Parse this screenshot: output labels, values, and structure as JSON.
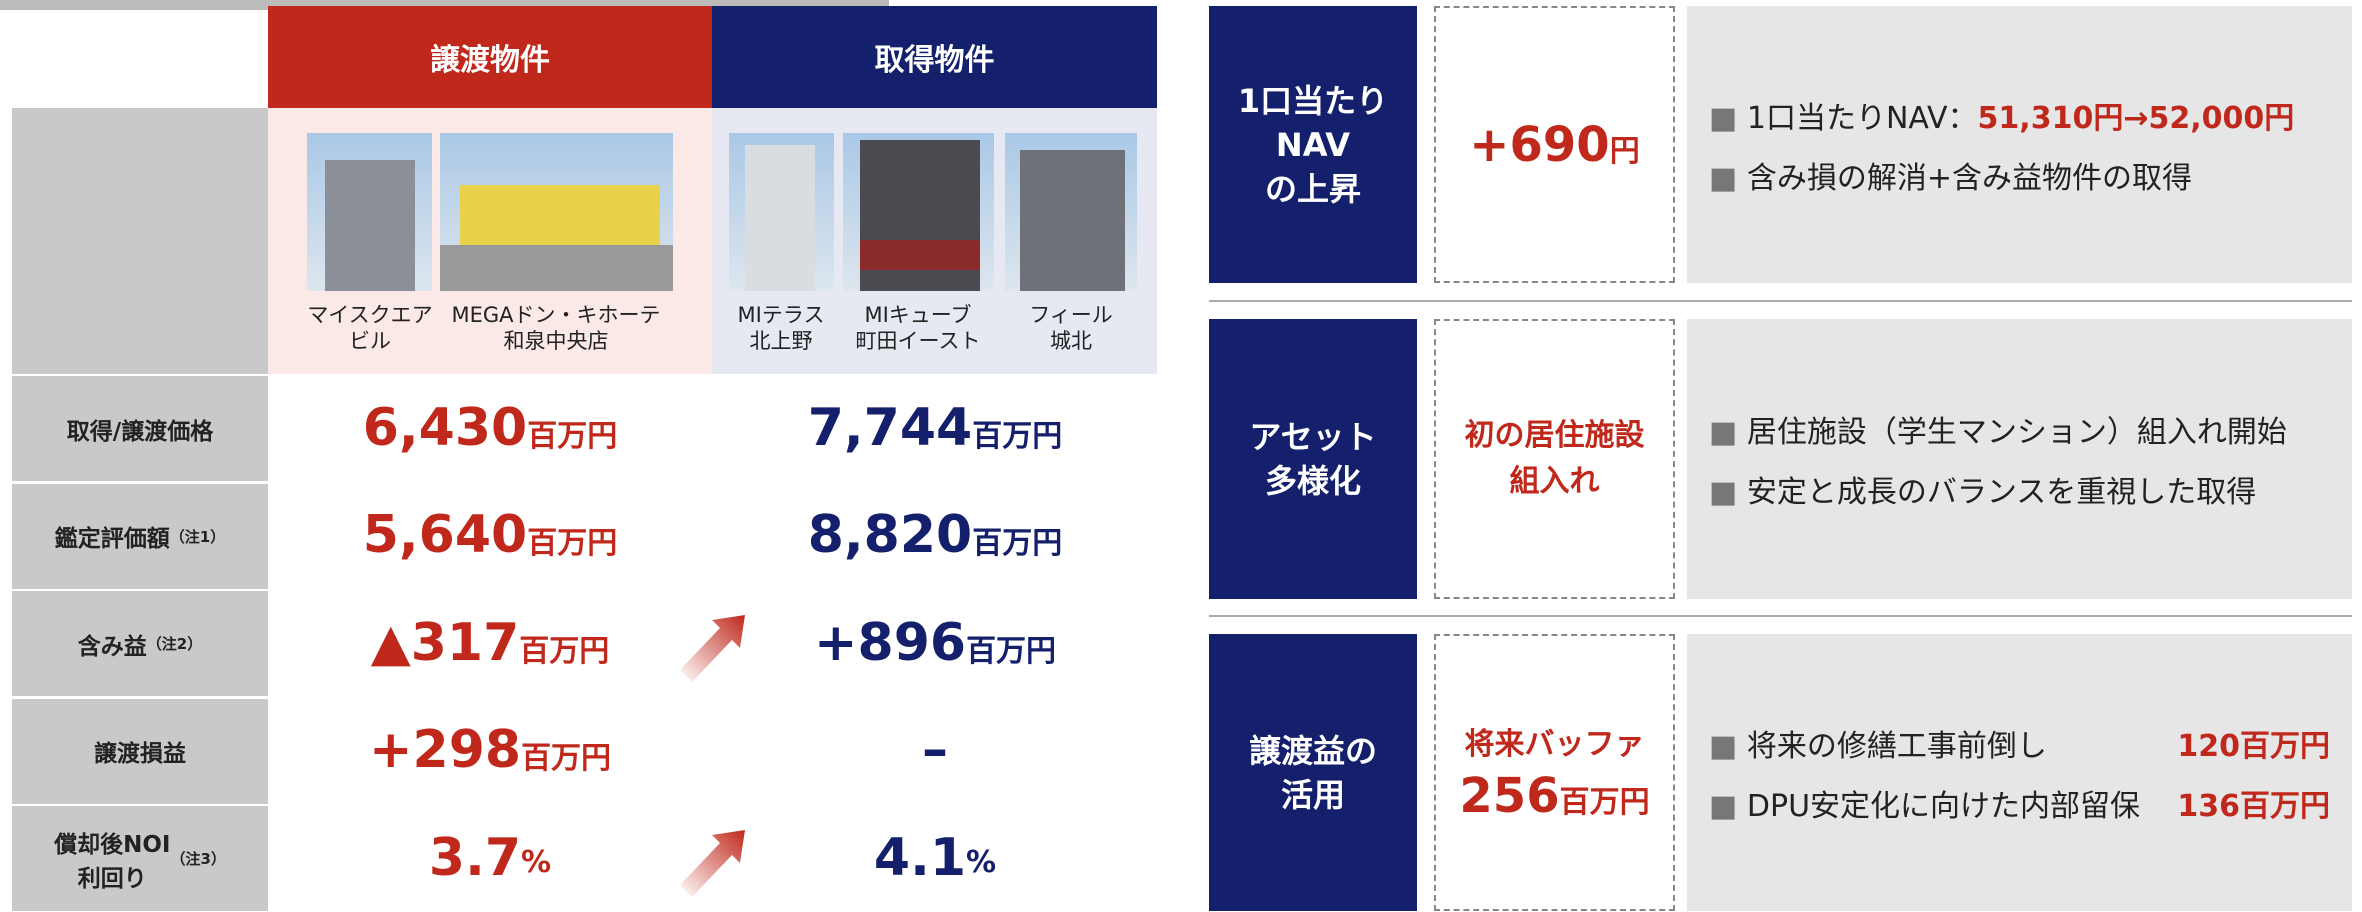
{
  "table": {
    "headers": [
      "譲渡物件",
      "取得物件"
    ],
    "properties": [
      "マイスクエア\nビル",
      "MEGAドン・キホーテ\n和泉中央店",
      "MIテラス\n北上野",
      "MIキューブ\n町田イースト",
      "フィール\n城北"
    ],
    "rows": [
      {
        "label": "取得/譲渡価格",
        "transfer": {
          "value": "6,430",
          "unit": "百万円"
        },
        "acquired": {
          "value": "7,744",
          "unit": "百万円"
        }
      },
      {
        "label": "鑑定評価額",
        "note": "（注1）",
        "transfer": {
          "value": "5,640",
          "unit": "百万円"
        },
        "acquired": {
          "value": "8,820",
          "unit": "百万円"
        }
      },
      {
        "label": "含み益",
        "note": "（注2）",
        "transfer": {
          "value": "▲317",
          "unit": "百万円"
        },
        "acquired": {
          "value": "+896",
          "unit": "百万円"
        }
      },
      {
        "label": "譲渡損益",
        "transfer": {
          "value": "+298",
          "unit": "百万円"
        },
        "acquired": {
          "value": "–"
        }
      },
      {
        "label": "償却後NOI\n利回り",
        "note": "（注3）",
        "transfer": {
          "value": "3.7",
          "unit": "%"
        },
        "acquired": {
          "value": "4.1",
          "unit": "%"
        }
      }
    ]
  },
  "highlights": [
    {
      "title": "1口当たり\nNAV\nの上昇",
      "highlight": {
        "value": "+690",
        "unit": "円"
      },
      "bullets": [
        {
          "text": "1口当たりNAV：",
          "red": "51,310円→52,000円"
        },
        {
          "text": "含み損の解消+含み益物件の取得"
        }
      ]
    },
    {
      "title": "アセット\n多様化",
      "highlight": {
        "text": "初の居住施設\n組入れ"
      },
      "bullets": [
        {
          "text": "居住施設（学生マンション）組入れ開始"
        },
        {
          "text": "安定と成長のバランスを重視した取得"
        }
      ]
    },
    {
      "title": "譲渡益の\n活用",
      "highlight": {
        "text": "将来バッファ",
        "value": "256",
        "unit": "百万円"
      },
      "bullets": [
        {
          "text": "将来の修繕工事前倒し",
          "red": "120百万円",
          "spread": true
        },
        {
          "text": "DPU安定化に向けた内部留保",
          "red": "136百万円",
          "spread": true
        }
      ]
    }
  ]
}
